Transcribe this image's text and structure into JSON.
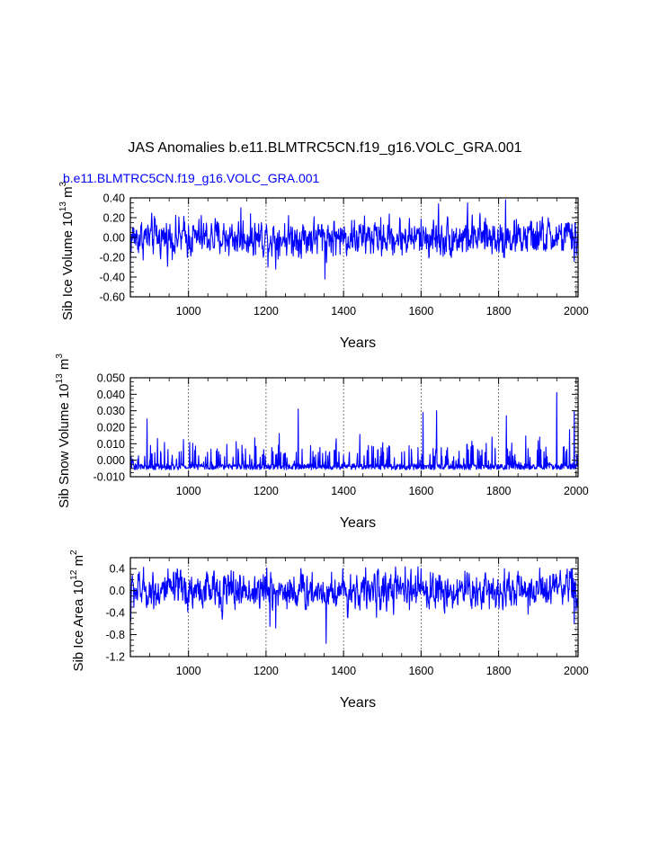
{
  "figure": {
    "title": "JAS Anomalies b.e11.BLMTRC5CN.f19_g16.VOLC_GRA.001",
    "subtitle": "b.e11.BLMTRC5CN.f19_g16.VOLC_GRA.001",
    "line_color": "#0000ff",
    "grid_color": "#555555"
  },
  "chart_data": [
    {
      "type": "line",
      "name": "sib-ice-volume",
      "title": "",
      "xlabel": "Years",
      "ylabel_main": "Sib Ice Volume 10",
      "ylabel_exp": "13",
      "ylabel_unit": " m",
      "ylabel_unit_exp": "3",
      "xlim": [
        850,
        2005
      ],
      "ylim": [
        -0.6,
        0.4
      ],
      "xticks": [
        1000,
        1200,
        1400,
        1600,
        1800,
        2000
      ],
      "xtick_labels": [
        "1000",
        "1200",
        "1400",
        "1600",
        "1800",
        "2000"
      ],
      "yticks": [
        -0.6,
        -0.4,
        -0.2,
        0.0,
        0.2,
        0.4
      ],
      "ytick_labels": [
        "-0.60",
        "-0.40",
        "-0.20",
        "0.00",
        "0.20",
        "0.40"
      ],
      "grid": "vertical-dotted",
      "series": {
        "start_year": 850,
        "end_year": 2005,
        "baseline": 0.0,
        "amplitude": 0.11,
        "extremes": [
          {
            "year": 850,
            "value": -0.28
          },
          {
            "year": 1135,
            "value": 0.3
          },
          {
            "year": 1205,
            "value": -0.3
          },
          {
            "year": 1225,
            "value": -0.32
          },
          {
            "year": 1352,
            "value": -0.42
          },
          {
            "year": 1645,
            "value": 0.34
          },
          {
            "year": 1720,
            "value": 0.35
          },
          {
            "year": 1818,
            "value": 0.38
          },
          {
            "year": 1995,
            "value": -0.24
          }
        ]
      }
    },
    {
      "type": "line",
      "name": "sib-snow-volume",
      "title": "",
      "xlabel": "Years",
      "ylabel_main": "Sib Snow Volume 10",
      "ylabel_exp": "13",
      "ylabel_unit": " m",
      "ylabel_unit_exp": "3",
      "xlim": [
        850,
        2005
      ],
      "ylim": [
        -0.01,
        0.05
      ],
      "xticks": [
        1000,
        1200,
        1400,
        1600,
        1800,
        2000
      ],
      "xtick_labels": [
        "1000",
        "1200",
        "1400",
        "1600",
        "1800",
        "2000"
      ],
      "yticks": [
        -0.01,
        0.0,
        0.01,
        0.02,
        0.03,
        0.04,
        0.05
      ],
      "ytick_labels": [
        "-0.010",
        "0.000",
        "0.010",
        "0.020",
        "0.030",
        "0.040",
        "0.050"
      ],
      "grid": "vertical-dotted",
      "series": {
        "start_year": 850,
        "end_year": 2005,
        "baseline": -0.004,
        "amplitude": 0.006,
        "extremes": [
          {
            "year": 893,
            "value": 0.025
          },
          {
            "year": 1283,
            "value": 0.031
          },
          {
            "year": 1605,
            "value": 0.029
          },
          {
            "year": 1640,
            "value": 0.03
          },
          {
            "year": 1820,
            "value": 0.027
          },
          {
            "year": 1950,
            "value": 0.041
          },
          {
            "year": 1995,
            "value": 0.03
          }
        ]
      }
    },
    {
      "type": "line",
      "name": "sib-ice-area",
      "title": "",
      "xlabel": "Years",
      "ylabel_main": "Sib Ice Area 10",
      "ylabel_exp": "12",
      "ylabel_unit": " m",
      "ylabel_unit_exp": "2",
      "xlim": [
        850,
        2005
      ],
      "ylim": [
        -1.2,
        0.6
      ],
      "xticks": [
        1000,
        1200,
        1400,
        1600,
        1800,
        2000
      ],
      "xtick_labels": [
        "1000",
        "1200",
        "1400",
        "1600",
        "1800",
        "2000"
      ],
      "yticks": [
        -1.2,
        -0.8,
        -0.4,
        0.0,
        0.4
      ],
      "ytick_labels": [
        "-1.2",
        "-0.8",
        "-0.4",
        "0.0",
        "0.4"
      ],
      "grid": "vertical-dotted",
      "series": {
        "start_year": 850,
        "end_year": 2005,
        "baseline": 0.0,
        "amplitude": 0.2,
        "extremes": [
          {
            "year": 851,
            "value": -0.55
          },
          {
            "year": 1210,
            "value": -0.65
          },
          {
            "year": 1225,
            "value": -0.68
          },
          {
            "year": 1355,
            "value": -0.96
          },
          {
            "year": 1600,
            "value": 0.4
          },
          {
            "year": 1815,
            "value": 0.4
          },
          {
            "year": 1990,
            "value": 0.4
          },
          {
            "year": 1995,
            "value": -0.6
          }
        ]
      }
    }
  ]
}
